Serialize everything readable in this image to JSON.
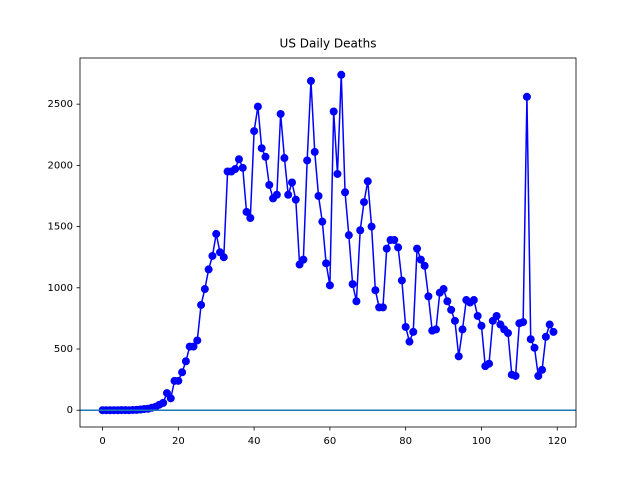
{
  "chart_data": {
    "type": "line",
    "title": "US Daily Deaths",
    "x": [
      0,
      1,
      2,
      3,
      4,
      5,
      6,
      7,
      8,
      9,
      10,
      11,
      12,
      13,
      14,
      15,
      16,
      17,
      18,
      19,
      20,
      21,
      22,
      23,
      24,
      25,
      26,
      27,
      28,
      29,
      30,
      31,
      32,
      33,
      34,
      35,
      36,
      37,
      38,
      39,
      40,
      41,
      42,
      43,
      44,
      45,
      46,
      47,
      48,
      49,
      50,
      51,
      52,
      53,
      54,
      55,
      56,
      57,
      58,
      59,
      60,
      61,
      62,
      63,
      64,
      65,
      66,
      67,
      68,
      69,
      70,
      71,
      72,
      73,
      74,
      75,
      76,
      77,
      78,
      79,
      80,
      81,
      82,
      83,
      84,
      85,
      86,
      87,
      88,
      89,
      90,
      91,
      92,
      93,
      94,
      95,
      96,
      97,
      98,
      99,
      100,
      101,
      102,
      103,
      104,
      105,
      106,
      107,
      108,
      109,
      110,
      111,
      112,
      113,
      114,
      115,
      116,
      117,
      118,
      119
    ],
    "series": [
      {
        "color": "#0000ff",
        "values": [
          0,
          0,
          0,
          0,
          0,
          1,
          1,
          0,
          2,
          3,
          6,
          10,
          12,
          20,
          28,
          45,
          60,
          140,
          97,
          240,
          240,
          310,
          400,
          520,
          520,
          570,
          860,
          990,
          1150,
          1260,
          1440,
          1290,
          1250,
          1950,
          1950,
          1970,
          2050,
          1980,
          1620,
          1570,
          2280,
          2480,
          2140,
          2070,
          1840,
          1730,
          1760,
          2420,
          2060,
          1760,
          1860,
          1720,
          1190,
          1230,
          2040,
          2690,
          2110,
          1750,
          1540,
          1200,
          1020,
          2440,
          1930,
          2740,
          1780,
          1430,
          1030,
          890,
          1470,
          1700,
          1870,
          1500,
          980,
          840,
          840,
          1320,
          1390,
          1390,
          1330,
          1060,
          680,
          560,
          640,
          1320,
          1230,
          1180,
          930,
          650,
          660,
          960,
          990,
          890,
          820,
          730,
          440,
          660,
          900,
          880,
          900,
          770,
          690,
          360,
          380,
          730,
          770,
          700,
          660,
          630,
          290,
          280,
          710,
          720,
          2560,
          580,
          510,
          280,
          330,
          600,
          700,
          640
        ]
      }
    ],
    "hline": 0,
    "hline_color": "#1f77b4",
    "markers": true,
    "xlim": [
      -5.95,
      124.95
    ],
    "xticks": [
      0,
      20,
      40,
      60,
      80,
      100,
      120
    ],
    "ylim": [
      -137,
      2877
    ],
    "yticks": [
      0,
      500,
      1000,
      1500,
      2000,
      2500
    ]
  }
}
